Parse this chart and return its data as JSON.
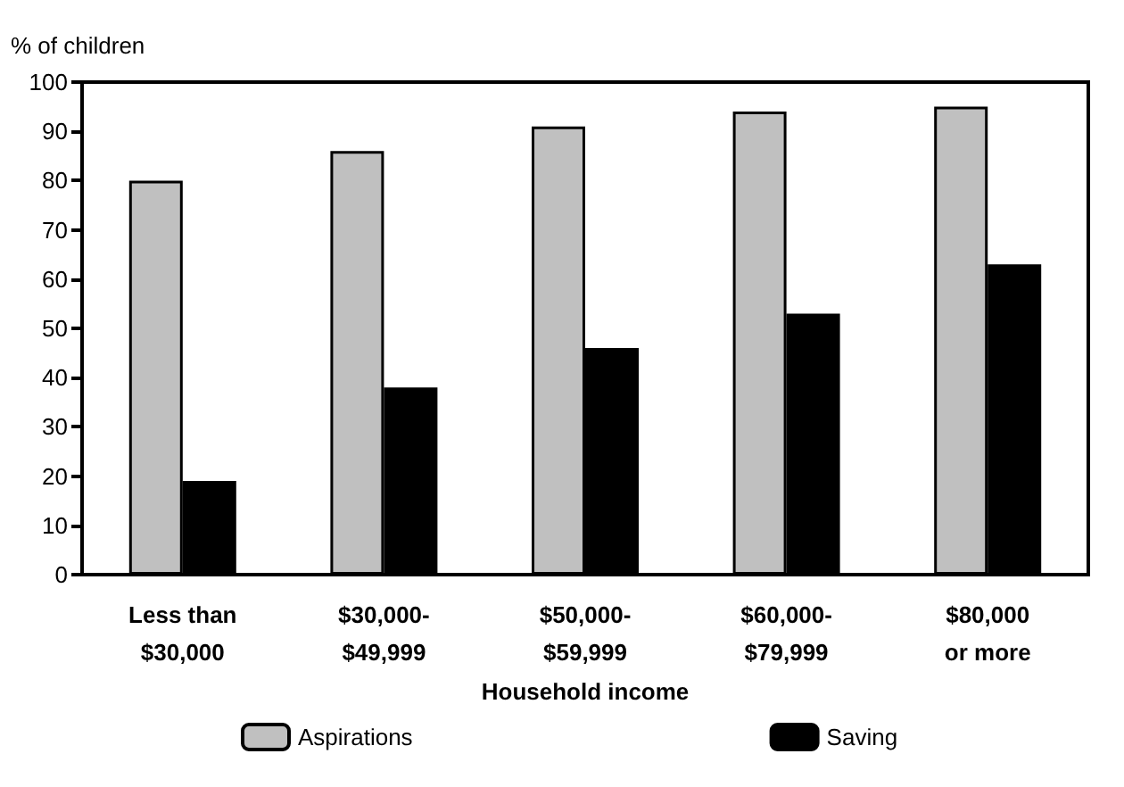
{
  "chart_data": {
    "type": "bar",
    "ylabel": "% of children",
    "xlabel": "Household income",
    "categories": [
      "Less than\n$30,000",
      "$30,000-\n$49,999",
      "$50,000-\n$59,999",
      "$60,000-\n$79,999",
      "$80,000\nor more"
    ],
    "series": [
      {
        "name": "Aspirations",
        "color": "#c0c0c0",
        "values": [
          80,
          86,
          91,
          94,
          95
        ]
      },
      {
        "name": "Saving",
        "color": "#000000",
        "values": [
          19,
          38,
          46,
          53,
          63
        ]
      }
    ],
    "ylim": [
      0,
      100
    ],
    "yticks": [
      0,
      10,
      20,
      30,
      40,
      50,
      60,
      70,
      80,
      90,
      100
    ],
    "grid": false,
    "legend": "bottom"
  }
}
